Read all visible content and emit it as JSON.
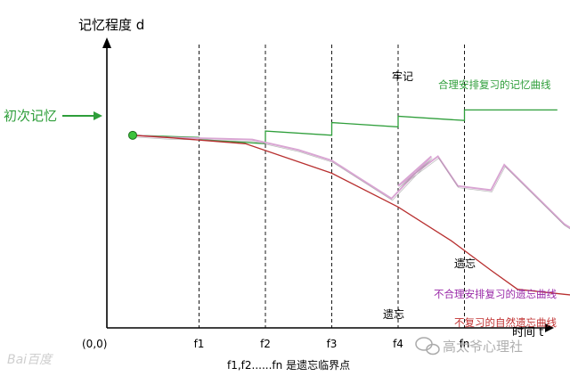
{
  "chart_data": {
    "type": "line",
    "ylabel": "记忆程度 d",
    "xlabel": "时间 t",
    "origin_label": "(0,0)",
    "x_ticks": [
      "f1",
      "f2",
      "f3",
      "f4",
      "fn"
    ],
    "x_tick_values": [
      1,
      2,
      3,
      4,
      5
    ],
    "xlim": [
      -0.5,
      7.5
    ],
    "ylim": [
      0,
      100
    ],
    "grid": "vertical-dashed-at-ticks",
    "initial_point": {
      "label": "初次记忆",
      "x": 0,
      "y": 82
    },
    "footnote": "f1,f2......fn 是遗忘临界点",
    "series": [
      {
        "key": "reasonable",
        "name": "合理安排复习的记忆曲线",
        "color": "#2e9e3a",
        "end_label": "牢记",
        "points": [
          [
            0,
            82
          ],
          [
            1,
            81
          ],
          [
            1,
            80
          ],
          [
            2,
            78
          ],
          [
            2,
            84
          ],
          [
            3,
            82
          ],
          [
            3,
            88
          ],
          [
            4,
            86
          ],
          [
            4,
            91
          ],
          [
            5,
            89
          ],
          [
            5,
            94
          ],
          [
            6.4,
            94
          ]
        ]
      },
      {
        "key": "unreasonable",
        "name": "不合理安排复习的遗忘曲线",
        "color": "#d9a6d3",
        "end_label": "遗忘",
        "points": [
          [
            0,
            82
          ],
          [
            0.5,
            81
          ],
          [
            1.8,
            80
          ],
          [
            2.5,
            75
          ],
          [
            3.0,
            70
          ],
          [
            3.4,
            62
          ],
          [
            3.9,
            52
          ],
          [
            4.5,
            72
          ],
          [
            4.0,
            58
          ],
          [
            4.6,
            72
          ],
          [
            4.9,
            58
          ],
          [
            5.4,
            56
          ],
          [
            5.6,
            68
          ],
          [
            6.5,
            40
          ],
          [
            7.0,
            30
          ]
        ]
      },
      {
        "key": "none",
        "name": "不复习的自然遗忘曲线",
        "color": "#b83030",
        "end_label": "遗忘",
        "points": [
          [
            0,
            82
          ],
          [
            0.5,
            81
          ],
          [
            1.7,
            78
          ],
          [
            3.0,
            64
          ],
          [
            4.0,
            48
          ],
          [
            4.8,
            32
          ],
          [
            5.4,
            18
          ],
          [
            5.8,
            9
          ],
          [
            7.0,
            5
          ]
        ]
      }
    ]
  },
  "watermarks": {
    "left": "Bai百度",
    "right": "高太爷心理社"
  }
}
